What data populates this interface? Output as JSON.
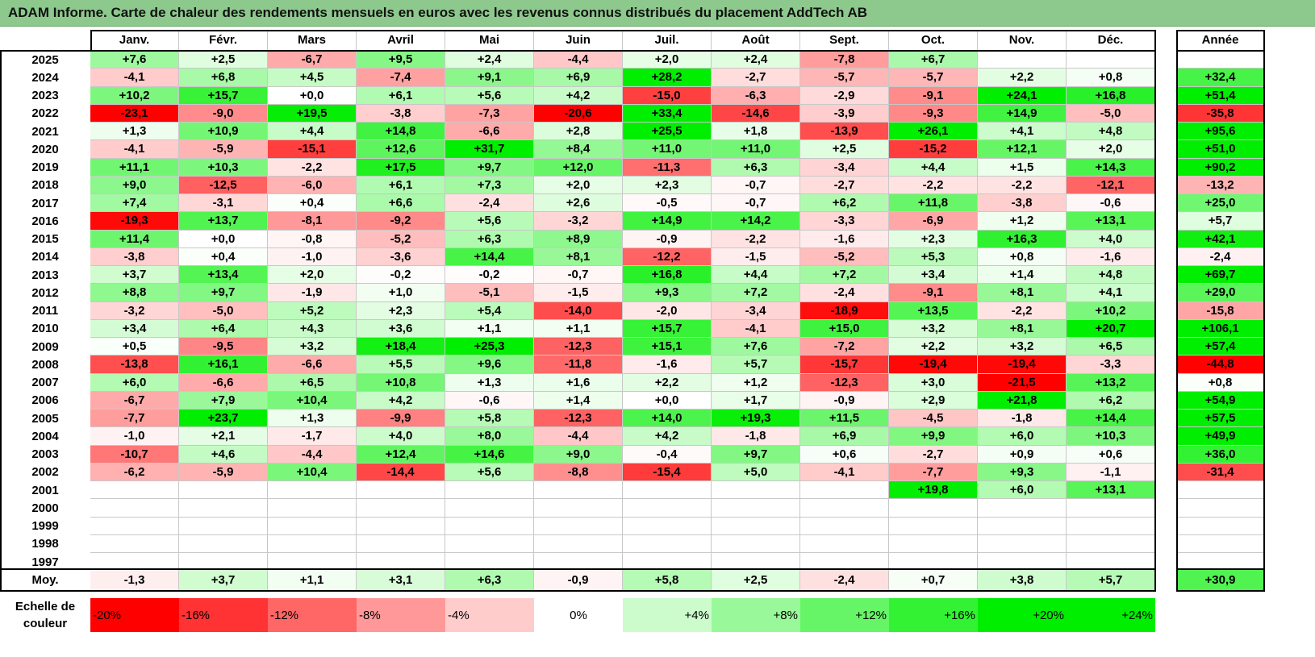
{
  "title": "ADAM Informe. Carte de chaleur des rendements mensuels en euros avec les revenus connus distribués du placement AddTech AB",
  "chart_data": {
    "type": "heatmap",
    "title": "ADAM Informe. Carte de chaleur des rendements mensuels en euros avec les revenus connus distribués du placement AddTech AB",
    "columns": [
      "Janv.",
      "Févr.",
      "Mars",
      "Avril",
      "Mai",
      "Juin",
      "Juil.",
      "Août",
      "Sept.",
      "Oct.",
      "Nov.",
      "Déc."
    ],
    "year_column_label": "Année",
    "rows": [
      {
        "year": "2025",
        "values": [
          "+7,6",
          "+2,5",
          "-6,7",
          "+9,5",
          "+2,4",
          "-4,4",
          "+2,0",
          "+2,4",
          "-7,8",
          "+6,7",
          "",
          ""
        ],
        "annual": ""
      },
      {
        "year": "2024",
        "values": [
          "-4,1",
          "+6,8",
          "+4,5",
          "-7,4",
          "+9,1",
          "+6,9",
          "+28,2",
          "-2,7",
          "-5,7",
          "-5,7",
          "+2,2",
          "+0,8"
        ],
        "annual": "+32,4"
      },
      {
        "year": "2023",
        "values": [
          "+10,2",
          "+15,7",
          "+0,0",
          "+6,1",
          "+5,6",
          "+4,2",
          "-15,0",
          "-6,3",
          "-2,9",
          "-9,1",
          "+24,1",
          "+16,8"
        ],
        "annual": "+51,4"
      },
      {
        "year": "2022",
        "values": [
          "-23,1",
          "-9,0",
          "+19,5",
          "-3,8",
          "-7,3",
          "-20,6",
          "+33,4",
          "-14,6",
          "-3,9",
          "-9,3",
          "+14,9",
          "-5,0"
        ],
        "annual": "-35,8"
      },
      {
        "year": "2021",
        "values": [
          "+1,3",
          "+10,9",
          "+4,4",
          "+14,8",
          "-6,6",
          "+2,8",
          "+25,5",
          "+1,8",
          "-13,9",
          "+26,1",
          "+4,1",
          "+4,8"
        ],
        "annual": "+95,6"
      },
      {
        "year": "2020",
        "values": [
          "-4,1",
          "-5,9",
          "-15,1",
          "+12,6",
          "+31,7",
          "+8,4",
          "+11,0",
          "+11,0",
          "+2,5",
          "-15,2",
          "+12,1",
          "+2,0"
        ],
        "annual": "+51,0"
      },
      {
        "year": "2019",
        "values": [
          "+11,1",
          "+10,3",
          "-2,2",
          "+17,5",
          "+9,7",
          "+12,0",
          "-11,3",
          "+6,3",
          "-3,4",
          "+4,4",
          "+1,5",
          "+14,3"
        ],
        "annual": "+90,2"
      },
      {
        "year": "2018",
        "values": [
          "+9,0",
          "-12,5",
          "-6,0",
          "+6,1",
          "+7,3",
          "+2,0",
          "+2,3",
          "-0,7",
          "-2,7",
          "-2,2",
          "-2,2",
          "-12,1"
        ],
        "annual": "-13,2"
      },
      {
        "year": "2017",
        "values": [
          "+7,4",
          "-3,1",
          "+0,4",
          "+6,6",
          "-2,4",
          "+2,6",
          "-0,5",
          "-0,7",
          "+6,2",
          "+11,8",
          "-3,8",
          "-0,6"
        ],
        "annual": "+25,0"
      },
      {
        "year": "2016",
        "values": [
          "-19,3",
          "+13,7",
          "-8,1",
          "-9,2",
          "+5,6",
          "-3,2",
          "+14,9",
          "+14,2",
          "-3,3",
          "-6,9",
          "+1,2",
          "+13,1"
        ],
        "annual": "+5,7"
      },
      {
        "year": "2015",
        "values": [
          "+11,4",
          "+0,0",
          "-0,8",
          "-5,2",
          "+6,3",
          "+8,9",
          "-0,9",
          "-2,2",
          "-1,6",
          "+2,3",
          "+16,3",
          "+4,0"
        ],
        "annual": "+42,1"
      },
      {
        "year": "2014",
        "values": [
          "-3,8",
          "+0,4",
          "-1,0",
          "-3,6",
          "+14,4",
          "+8,1",
          "-12,2",
          "-1,5",
          "-5,2",
          "+5,3",
          "+0,8",
          "-1,6"
        ],
        "annual": "-2,4"
      },
      {
        "year": "2013",
        "values": [
          "+3,7",
          "+13,4",
          "+2,0",
          "-0,2",
          "-0,2",
          "-0,7",
          "+16,8",
          "+4,4",
          "+7,2",
          "+3,4",
          "+1,4",
          "+4,8"
        ],
        "annual": "+69,7"
      },
      {
        "year": "2012",
        "values": [
          "+8,8",
          "+9,7",
          "-1,9",
          "+1,0",
          "-5,1",
          "-1,5",
          "+9,3",
          "+7,2",
          "-2,4",
          "-9,1",
          "+8,1",
          "+4,1"
        ],
        "annual": "+29,0"
      },
      {
        "year": "2011",
        "values": [
          "-3,2",
          "-5,0",
          "+5,2",
          "+2,3",
          "+5,4",
          "-14,0",
          "-2,0",
          "-3,4",
          "-18,9",
          "+13,5",
          "-2,2",
          "+10,2"
        ],
        "annual": "-15,8"
      },
      {
        "year": "2010",
        "values": [
          "+3,4",
          "+6,4",
          "+4,3",
          "+3,6",
          "+1,1",
          "+1,1",
          "+15,7",
          "-4,1",
          "+15,0",
          "+3,2",
          "+8,1",
          "+20,7"
        ],
        "annual": "+106,1"
      },
      {
        "year": "2009",
        "values": [
          "+0,5",
          "-9,5",
          "+3,2",
          "+18,4",
          "+25,3",
          "-12,3",
          "+15,1",
          "+7,6",
          "-7,2",
          "+2,2",
          "+3,2",
          "+6,5"
        ],
        "annual": "+57,4"
      },
      {
        "year": "2008",
        "values": [
          "-13,8",
          "+16,1",
          "-6,6",
          "+5,5",
          "+9,6",
          "-11,8",
          "-1,6",
          "+5,7",
          "-15,7",
          "-19,4",
          "-19,4",
          "-3,3"
        ],
        "annual": "-44,8"
      },
      {
        "year": "2007",
        "values": [
          "+6,0",
          "-6,6",
          "+6,5",
          "+10,8",
          "+1,3",
          "+1,6",
          "+2,2",
          "+1,2",
          "-12,3",
          "+3,0",
          "-21,5",
          "+13,2"
        ],
        "annual": "+0,8"
      },
      {
        "year": "2006",
        "values": [
          "-6,7",
          "+7,9",
          "+10,4",
          "+4,2",
          "-0,6",
          "+1,4",
          "+0,0",
          "+1,7",
          "-0,9",
          "+2,9",
          "+21,8",
          "+6,2"
        ],
        "annual": "+54,9"
      },
      {
        "year": "2005",
        "values": [
          "-7,7",
          "+23,7",
          "+1,3",
          "-9,9",
          "+5,8",
          "-12,3",
          "+14,0",
          "+19,3",
          "+11,5",
          "-4,5",
          "-1,8",
          "+14,4"
        ],
        "annual": "+57,5"
      },
      {
        "year": "2004",
        "values": [
          "-1,0",
          "+2,1",
          "-1,7",
          "+4,0",
          "+8,0",
          "-4,4",
          "+4,2",
          "-1,8",
          "+6,9",
          "+9,9",
          "+6,0",
          "+10,3"
        ],
        "annual": "+49,9"
      },
      {
        "year": "2003",
        "values": [
          "-10,7",
          "+4,6",
          "-4,4",
          "+12,4",
          "+14,6",
          "+9,0",
          "-0,4",
          "+9,7",
          "+0,6",
          "-2,7",
          "+0,9",
          "+0,6"
        ],
        "annual": "+36,0"
      },
      {
        "year": "2002",
        "values": [
          "-6,2",
          "-5,9",
          "+10,4",
          "-14,4",
          "+5,6",
          "-8,8",
          "-15,4",
          "+5,0",
          "-4,1",
          "-7,7",
          "+9,3",
          "-1,1"
        ],
        "annual": "-31,4"
      },
      {
        "year": "2001",
        "values": [
          "",
          "",
          "",
          "",
          "",
          "",
          "",
          "",
          "",
          "+19,8",
          "+6,0",
          "+13,1"
        ],
        "annual": ""
      },
      {
        "year": "2000",
        "values": [
          "",
          "",
          "",
          "",
          "",
          "",
          "",
          "",
          "",
          "",
          "",
          ""
        ],
        "annual": ""
      },
      {
        "year": "1999",
        "values": [
          "",
          "",
          "",
          "",
          "",
          "",
          "",
          "",
          "",
          "",
          "",
          ""
        ],
        "annual": ""
      },
      {
        "year": "1998",
        "values": [
          "",
          "",
          "",
          "",
          "",
          "",
          "",
          "",
          "",
          "",
          "",
          ""
        ],
        "annual": ""
      },
      {
        "year": "1997",
        "values": [
          "",
          "",
          "",
          "",
          "",
          "",
          "",
          "",
          "",
          "",
          "",
          ""
        ],
        "annual": ""
      }
    ],
    "average_row": {
      "label": "Moy.",
      "values": [
        "-1,3",
        "+3,7",
        "+1,1",
        "+3,1",
        "+6,3",
        "-0,9",
        "+5,8",
        "+2,5",
        "-2,4",
        "+0,7",
        "+3,8",
        "+5,7"
      ],
      "annual": "+30,9"
    },
    "color_scale": {
      "label": "Echelle de couleur",
      "stops": [
        "-20%",
        "-16%",
        "-12%",
        "-8%",
        "-4%",
        "0%",
        "+4%",
        "+8%",
        "+12%",
        "+16%",
        "+20%",
        "+24%"
      ]
    },
    "colors": {
      "negative": "#ff0000",
      "neutral": "#ffffff",
      "positive": "#00ee00",
      "title_bg": "#8dc98d"
    }
  }
}
